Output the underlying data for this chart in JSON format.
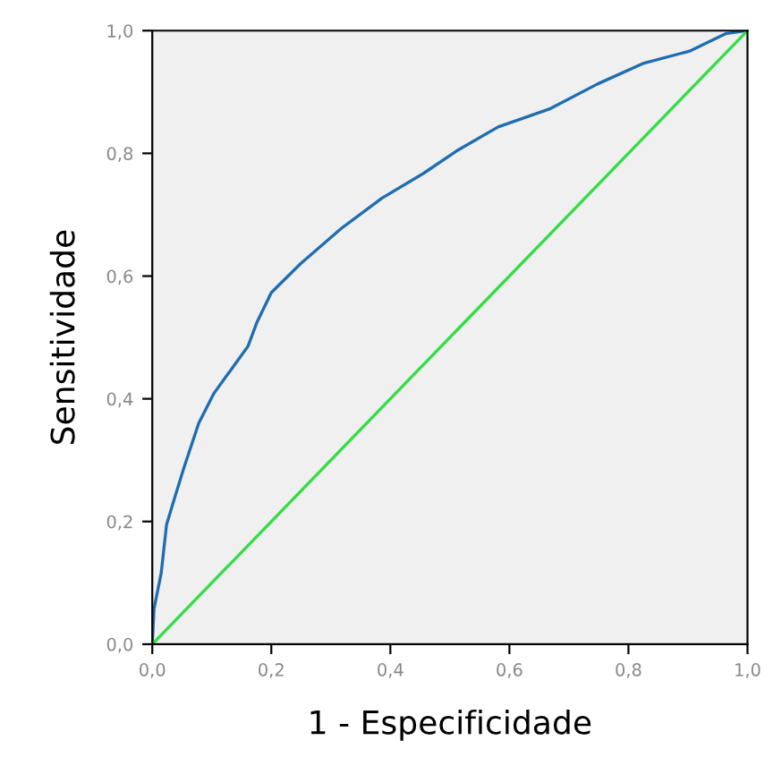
{
  "chart_data": {
    "type": "line",
    "xlabel": "1 - Especificidade",
    "ylabel": "Sensitividade",
    "xlim": [
      0,
      1
    ],
    "ylim": [
      0,
      1
    ],
    "xticks": [
      {
        "value": 0,
        "label": "0,0"
      },
      {
        "value": 0.2,
        "label": "0,2"
      },
      {
        "value": 0.4,
        "label": "0,4"
      },
      {
        "value": 0.6,
        "label": "0,6"
      },
      {
        "value": 0.8,
        "label": "0,8"
      },
      {
        "value": 1,
        "label": "1,0"
      }
    ],
    "yticks": [
      {
        "value": 0,
        "label": "0,0"
      },
      {
        "value": 0.2,
        "label": "0,2"
      },
      {
        "value": 0.4,
        "label": "0,4"
      },
      {
        "value": 0.6,
        "label": "0,6"
      },
      {
        "value": 0.8,
        "label": "0,8"
      },
      {
        "value": 1,
        "label": "1,0"
      }
    ],
    "grid": false,
    "legend": false,
    "series": [
      {
        "color": "#1f6db0",
        "x": [
          0,
          0.003,
          0.015,
          0.024,
          0.039,
          0.054,
          0.078,
          0.103,
          0.132,
          0.161,
          0.176,
          0.2,
          0.249,
          0.318,
          0.386,
          0.455,
          0.513,
          0.581,
          0.669,
          0.748,
          0.826,
          0.904,
          0.963,
          1
        ],
        "values": [
          0,
          0.058,
          0.116,
          0.195,
          0.243,
          0.29,
          0.36,
          0.408,
          0.447,
          0.486,
          0.525,
          0.573,
          0.62,
          0.678,
          0.727,
          0.767,
          0.805,
          0.843,
          0.873,
          0.913,
          0.947,
          0.967,
          0.995,
          1
        ]
      },
      {
        "color": "#33dd44",
        "x": [
          0,
          1
        ],
        "values": [
          0,
          1
        ]
      }
    ]
  }
}
